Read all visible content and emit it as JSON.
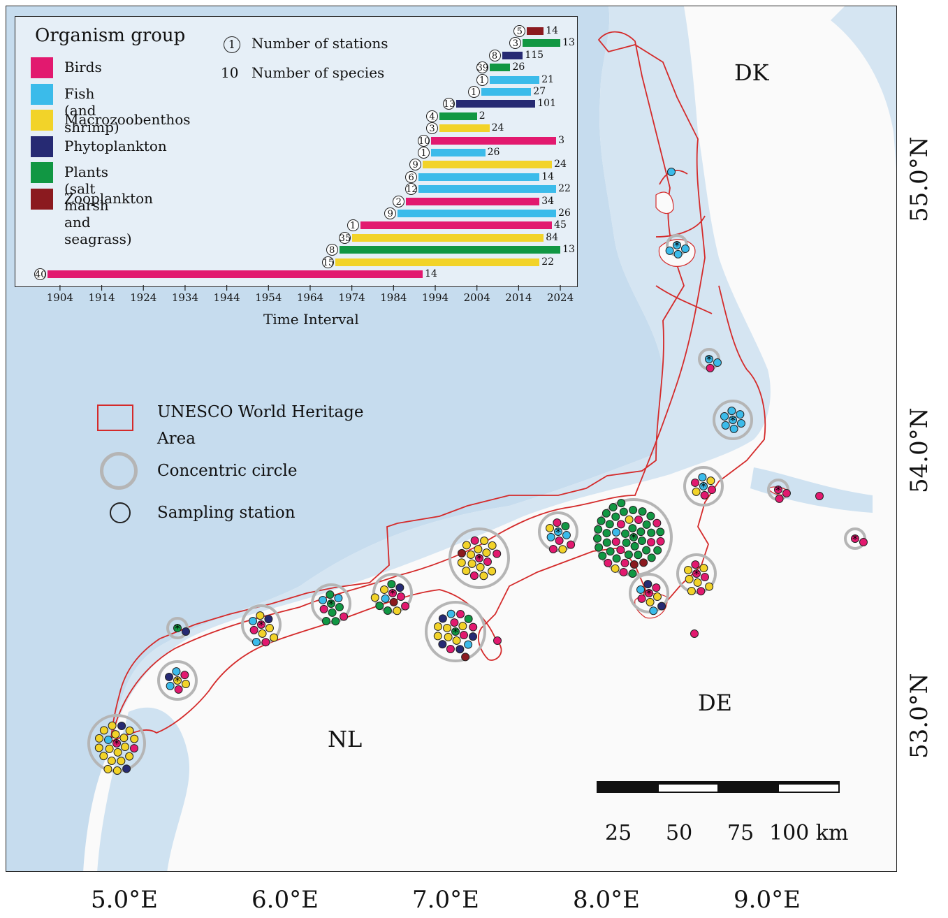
{
  "countries": [
    "DK",
    "DE",
    "NL"
  ],
  "lon_labels": [
    "5.0°E",
    "6.0°E",
    "7.0°E",
    "8.0°E",
    "9.0°E"
  ],
  "lat_labels": [
    "55.0°N",
    "54.0°N",
    "53.0°N"
  ],
  "inset": {
    "legend_title": "Organism group",
    "groups": [
      {
        "name": "Birds",
        "color": "#e2196f"
      },
      {
        "name": "Fish (and shrimp)",
        "color": "#3bbbea"
      },
      {
        "name": "Macrozoobenthos",
        "color": "#f2d329"
      },
      {
        "name": "Phytoplankton",
        "color": "#262a73"
      },
      {
        "name": "Plants (salt marsh and seagrass)",
        "color": "#119743"
      },
      {
        "name": "Zooplankton",
        "color": "#8b1a1f"
      }
    ],
    "station_key_symbol": "1",
    "station_key_label": "Number of stations",
    "species_key_symbol": "10",
    "species_key_label": "Number of species",
    "x_ticks": [
      "1904",
      "1914",
      "1924",
      "1934",
      "1944",
      "1954",
      "1964",
      "1974",
      "1984",
      "1994",
      "2004",
      "2014",
      "2024"
    ],
    "x_title": "Time Interval"
  },
  "chart_data": {
    "type": "timeline",
    "x_label": "Time Interval",
    "x_range": [
      1900,
      2026
    ],
    "bars": [
      {
        "group": "Zooplankton",
        "start": 2016,
        "end": 2020,
        "stations": "5",
        "species": "14"
      },
      {
        "group": "Plants (salt marsh and seagrass)",
        "start": 2015,
        "end": 2024,
        "stations": "3",
        "species": "13"
      },
      {
        "group": "Phytoplankton",
        "start": 2010,
        "end": 2015,
        "stations": "8",
        "species": "115"
      },
      {
        "group": "Plants (salt marsh and seagrass)",
        "start": 2007,
        "end": 2012,
        "stations": "39",
        "species": "26"
      },
      {
        "group": "Fish (and shrimp)",
        "start": 2007,
        "end": 2019,
        "stations": "1",
        "species": "21"
      },
      {
        "group": "Fish (and shrimp)",
        "start": 2005,
        "end": 2017,
        "stations": "1",
        "species": "27"
      },
      {
        "group": "Phytoplankton",
        "start": 1999,
        "end": 2018,
        "stations": "13",
        "species": "101"
      },
      {
        "group": "Plants (salt marsh and seagrass)",
        "start": 1995,
        "end": 2004,
        "stations": "4",
        "species": "2"
      },
      {
        "group": "Macrozoobenthos",
        "start": 1995,
        "end": 2007,
        "stations": "3",
        "species": "24"
      },
      {
        "group": "Birds",
        "start": 1993,
        "end": 2023,
        "stations": "10",
        "species": "3"
      },
      {
        "group": "Fish (and shrimp)",
        "start": 1993,
        "end": 2006,
        "stations": "1",
        "species": "26"
      },
      {
        "group": "Macrozoobenthos",
        "start": 1991,
        "end": 2022,
        "stations": "9",
        "species": "24"
      },
      {
        "group": "Fish (and shrimp)",
        "start": 1990,
        "end": 2019,
        "stations": "6",
        "species": "14"
      },
      {
        "group": "Fish (and shrimp)",
        "start": 1990,
        "end": 2023,
        "stations": "12",
        "species": "22"
      },
      {
        "group": "Birds",
        "start": 1987,
        "end": 2019,
        "stations": "2",
        "species": "34"
      },
      {
        "group": "Fish (and shrimp)",
        "start": 1985,
        "end": 2023,
        "stations": "9",
        "species": "26"
      },
      {
        "group": "Birds",
        "start": 1976,
        "end": 2022,
        "stations": "1",
        "species": "45"
      },
      {
        "group": "Macrozoobenthos",
        "start": 1974,
        "end": 2020,
        "stations": "35",
        "species": "84"
      },
      {
        "group": "Plants (salt marsh and seagrass)",
        "start": 1971,
        "end": 2024,
        "stations": "8",
        "species": "13"
      },
      {
        "group": "Macrozoobenthos",
        "start": 1970,
        "end": 2019,
        "stations": "15",
        "species": "22"
      },
      {
        "group": "Birds",
        "start": 1901,
        "end": 1991,
        "stations": "40",
        "species": "14"
      }
    ]
  },
  "map_legend": {
    "whs_label_line1": "UNESCO World Heritage",
    "whs_label_line2": "Area",
    "circle_label": "Concentric circle",
    "station_label": "Sampling station"
  },
  "scalebar": {
    "labels": [
      "25",
      "50",
      "75",
      "100 km"
    ]
  },
  "colors": {
    "water": "#c9deee",
    "land": "#fafafa",
    "boundary": "#d42a2a",
    "ring": "#b5b5b5"
  }
}
